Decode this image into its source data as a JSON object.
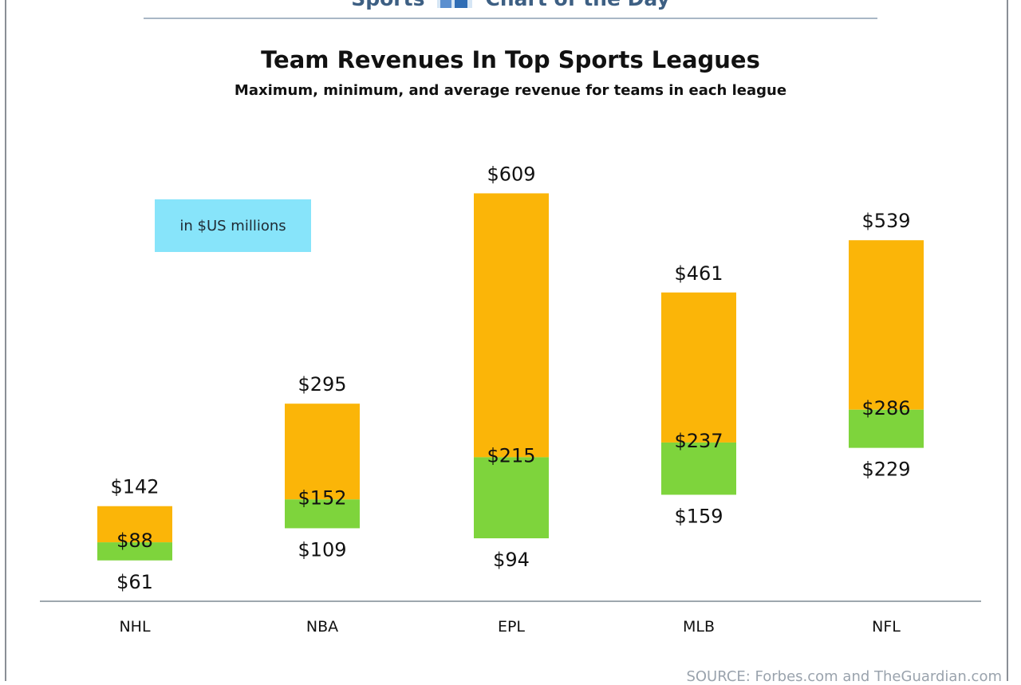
{
  "banner": {
    "left": "Sports",
    "right": "Chart of the Day"
  },
  "unit_note": "in $US millions",
  "source": "SOURCE: Forbes.com and TheGuardian.com",
  "colors": {
    "max_segment": "#fbb508",
    "min_segment": "#7ed43c",
    "axis": "#7f8a94",
    "note_box": "#87e4fa"
  },
  "chart_data": {
    "type": "bar",
    "title": "Team Revenues In Top Sports Leagues",
    "subtitle": "Maximum, minimum, and average revenue for teams in each league",
    "xlabel": "",
    "ylabel": "",
    "categories": [
      "NHL",
      "NBA",
      "EPL",
      "MLB",
      "NFL"
    ],
    "series": [
      {
        "name": "Maximum",
        "values": [
          142,
          295,
          609,
          461,
          539
        ],
        "labels": [
          "$142",
          "$295",
          "$609",
          "$461",
          "$539"
        ]
      },
      {
        "name": "Average",
        "values": [
          88,
          152,
          215,
          237,
          286
        ],
        "labels": [
          "$88",
          "$152",
          "$215",
          "$237",
          "$286"
        ]
      },
      {
        "name": "Minimum",
        "values": [
          61,
          109,
          94,
          159,
          229
        ],
        "labels": [
          "$61",
          "$109",
          "$94",
          "$159",
          "$229"
        ]
      }
    ],
    "ylim": [
      0,
      650
    ],
    "grid": false,
    "legend": "none"
  }
}
